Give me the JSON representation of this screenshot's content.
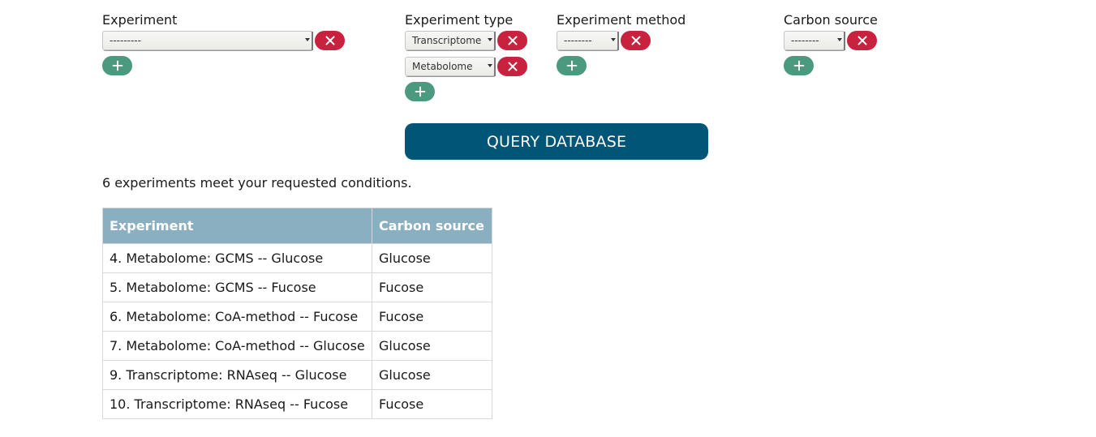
{
  "filters": {
    "experiment": {
      "label": "Experiment",
      "selects": [
        {
          "value": "---------"
        }
      ]
    },
    "experiment_type": {
      "label": "Experiment type",
      "selects": [
        {
          "value": "Transcriptome"
        },
        {
          "value": "Metabolome"
        }
      ]
    },
    "experiment_method": {
      "label": "Experiment method",
      "selects": [
        {
          "value": "--------"
        }
      ]
    },
    "carbon_source": {
      "label": "Carbon source",
      "selects": [
        {
          "value": "--------"
        }
      ]
    }
  },
  "icons": {
    "remove": "close-icon",
    "add": "plus-icon"
  },
  "colors": {
    "remove_button": "#c8223f",
    "add_button": "#4b9a80",
    "query_button": "#015576",
    "table_header": "#89afc1"
  },
  "query_button": {
    "label": "QUERY DATABASE"
  },
  "result_summary": "6 experiments meet your requested conditions.",
  "results_table": {
    "headers": [
      "Experiment",
      "Carbon source"
    ],
    "rows": [
      [
        "4. Metabolome: GCMS -- Glucose",
        "Glucose"
      ],
      [
        "5. Metabolome: GCMS -- Fucose",
        "Fucose"
      ],
      [
        "6. Metabolome: CoA-method -- Fucose",
        "Fucose"
      ],
      [
        "7. Metabolome: CoA-method -- Glucose",
        "Glucose"
      ],
      [
        "9. Transcriptome: RNAseq -- Glucose",
        "Glucose"
      ],
      [
        "10. Transcriptome: RNAseq -- Fucose",
        "Fucose"
      ]
    ]
  }
}
